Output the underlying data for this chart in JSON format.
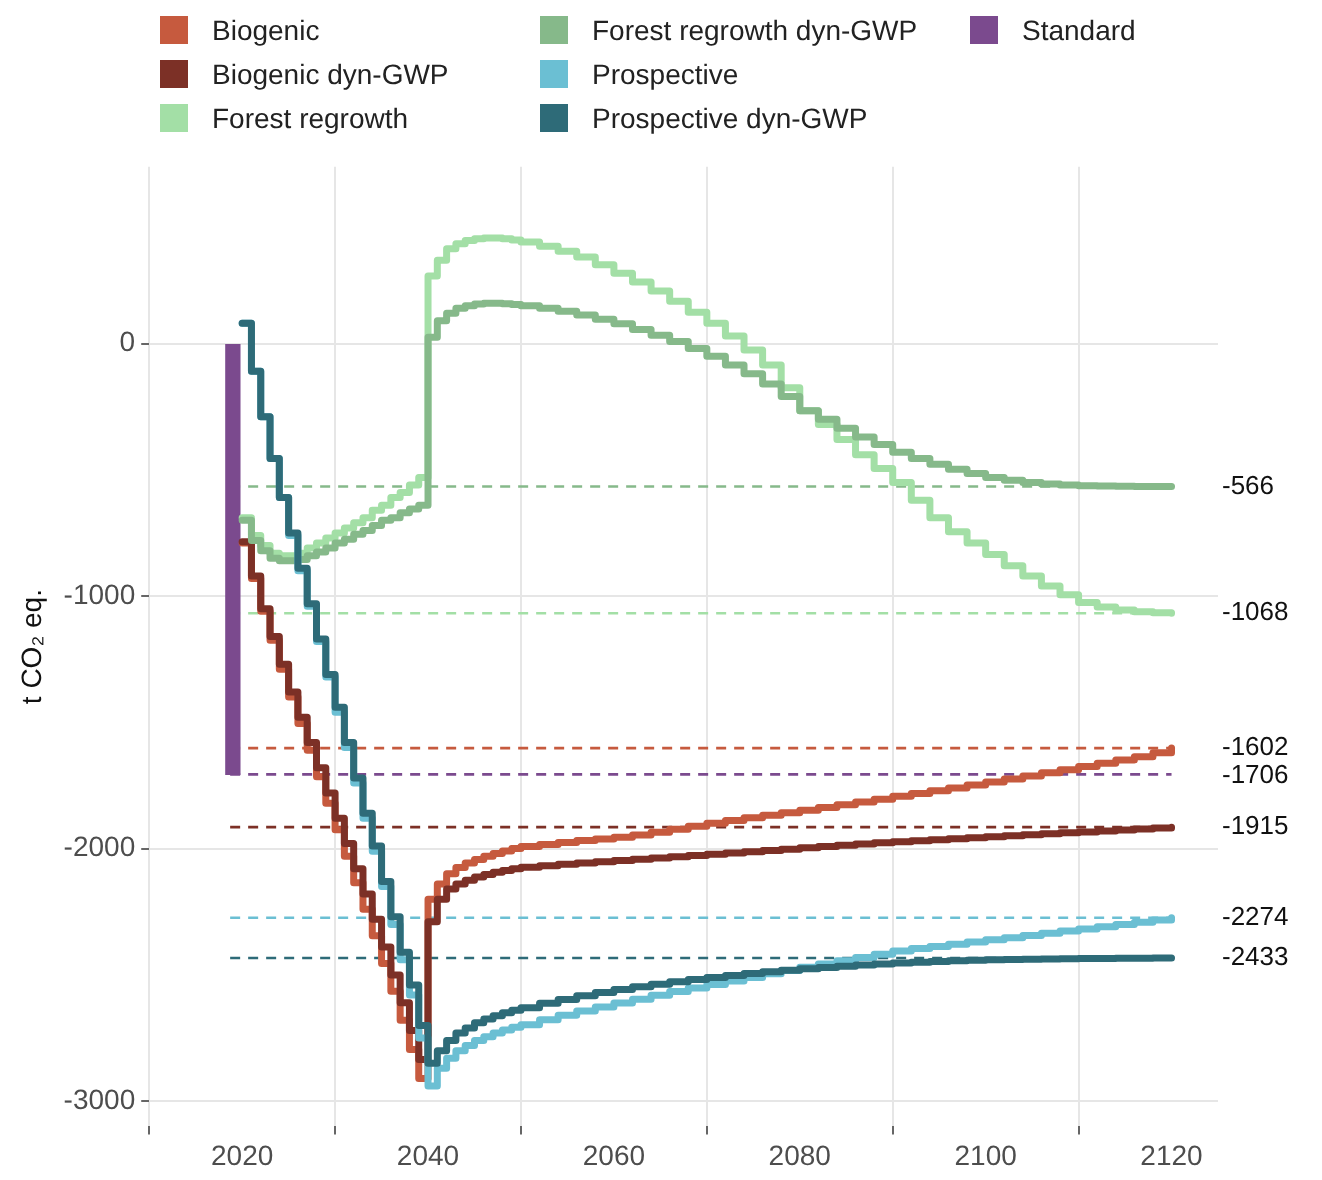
{
  "chart_data": {
    "type": "step",
    "ylabel": "t CO₂ eq.",
    "legend": "top",
    "grid": true,
    "marker": "none",
    "x": [
      2020,
      2021,
      2022,
      2023,
      2024,
      2025,
      2026,
      2027,
      2028,
      2029,
      2030,
      2031,
      2032,
      2033,
      2034,
      2035,
      2036,
      2037,
      2038,
      2039,
      2040,
      2041,
      2042,
      2043,
      2044,
      2045,
      2046,
      2047,
      2048,
      2049,
      2050,
      2052,
      2054,
      2056,
      2058,
      2060,
      2062,
      2064,
      2066,
      2068,
      2070,
      2072,
      2074,
      2076,
      2078,
      2080,
      2082,
      2084,
      2086,
      2088,
      2090,
      2092,
      2094,
      2096,
      2098,
      2100,
      2102,
      2104,
      2106,
      2108,
      2110,
      2112,
      2114,
      2116,
      2118,
      2120
    ],
    "xlim": [
      2010,
      2125
    ],
    "xticks": [
      2020,
      2040,
      2060,
      2080,
      2100,
      2120
    ],
    "ylim": [
      -3100,
      700
    ],
    "yticks": [
      -3000,
      -2000,
      -1000,
      0
    ],
    "series": [
      {
        "name": "Biogenic",
        "color": "#c65a3e",
        "values": [
          -790,
          -930,
          -1060,
          -1175,
          -1290,
          -1400,
          -1505,
          -1610,
          -1715,
          -1820,
          -1925,
          -2030,
          -2135,
          -2240,
          -2345,
          -2455,
          -2565,
          -2680,
          -2795,
          -2910,
          -2200,
          -2140,
          -2100,
          -2075,
          -2057,
          -2043,
          -2030,
          -2019,
          -2009,
          -2000,
          -1992,
          -1984,
          -1976,
          -1968,
          -1962,
          -1955,
          -1946,
          -1935,
          -1923,
          -1911,
          -1900,
          -1889,
          -1878,
          -1868,
          -1858,
          -1848,
          -1837,
          -1826,
          -1815,
          -1804,
          -1793,
          -1782,
          -1771,
          -1760,
          -1748,
          -1736,
          -1724,
          -1712,
          -1700,
          -1688,
          -1675,
          -1662,
          -1649,
          -1636,
          -1620,
          -1602
        ]
      },
      {
        "name": "Biogenic dyn-GWP",
        "color": "#7c3026",
        "values": [
          -785,
          -920,
          -1050,
          -1160,
          -1270,
          -1380,
          -1480,
          -1580,
          -1680,
          -1780,
          -1880,
          -1980,
          -2080,
          -2180,
          -2280,
          -2390,
          -2500,
          -2610,
          -2720,
          -2835,
          -2290,
          -2200,
          -2160,
          -2140,
          -2125,
          -2112,
          -2102,
          -2094,
          -2087,
          -2080,
          -2074,
          -2068,
          -2062,
          -2057,
          -2052,
          -2047,
          -2042,
          -2037,
          -2032,
          -2027,
          -2022,
          -2017,
          -2012,
          -2007,
          -2002,
          -1997,
          -1992,
          -1987,
          -1982,
          -1977,
          -1973,
          -1969,
          -1965,
          -1961,
          -1957,
          -1953,
          -1949,
          -1945,
          -1941,
          -1937,
          -1934,
          -1930,
          -1926,
          -1922,
          -1918,
          -1915
        ]
      },
      {
        "name": "Forest regrowth",
        "color": "#a3dfa6",
        "values": [
          -690,
          -760,
          -800,
          -830,
          -840,
          -840,
          -830,
          -810,
          -790,
          -770,
          -750,
          -730,
          -710,
          -690,
          -660,
          -640,
          -610,
          -590,
          -560,
          -530,
          268,
          330,
          375,
          395,
          408,
          415,
          418,
          418,
          415,
          410,
          402,
          385,
          366,
          343,
          312,
          278,
          244,
          208,
          168,
          124,
          80,
          30,
          -25,
          -85,
          -175,
          -266,
          -320,
          -380,
          -440,
          -495,
          -550,
          -620,
          -690,
          -745,
          -790,
          -835,
          -880,
          -920,
          -960,
          -995,
          -1025,
          -1043,
          -1055,
          -1062,
          -1066,
          -1068
        ]
      },
      {
        "name": "Forest regrowth dyn-GWP",
        "color": "#86b98a",
        "values": [
          -700,
          -780,
          -820,
          -850,
          -860,
          -860,
          -855,
          -840,
          -825,
          -810,
          -790,
          -775,
          -755,
          -740,
          -720,
          -700,
          -690,
          -670,
          -655,
          -640,
          25,
          90,
          120,
          140,
          150,
          157,
          160,
          160,
          158,
          155,
          150,
          140,
          128,
          113,
          96,
          78,
          56,
          33,
          8,
          -20,
          -50,
          -85,
          -120,
          -160,
          -210,
          -266,
          -300,
          -335,
          -370,
          -400,
          -430,
          -455,
          -478,
          -498,
          -515,
          -530,
          -541,
          -550,
          -556,
          -560,
          -563,
          -564,
          -565,
          -566,
          -566,
          -566
        ]
      },
      {
        "name": "Prospective",
        "color": "#6bbfd3",
        "values": [
          80,
          -110,
          -290,
          -455,
          -610,
          -760,
          -900,
          -1040,
          -1180,
          -1320,
          -1460,
          -1600,
          -1740,
          -1880,
          -2010,
          -2150,
          -2300,
          -2440,
          -2580,
          -2750,
          -2940,
          -2870,
          -2830,
          -2800,
          -2780,
          -2760,
          -2745,
          -2730,
          -2718,
          -2707,
          -2697,
          -2678,
          -2660,
          -2643,
          -2627,
          -2611,
          -2596,
          -2581,
          -2566,
          -2552,
          -2538,
          -2524,
          -2510,
          -2496,
          -2483,
          -2470,
          -2457,
          -2444,
          -2431,
          -2418,
          -2405,
          -2396,
          -2388,
          -2379,
          -2370,
          -2361,
          -2353,
          -2344,
          -2335,
          -2326,
          -2318,
          -2309,
          -2300,
          -2292,
          -2283,
          -2274
        ]
      },
      {
        "name": "Prospective dyn-GWP",
        "color": "#2e6b78",
        "values": [
          80,
          -110,
          -290,
          -455,
          -610,
          -750,
          -890,
          -1030,
          -1170,
          -1310,
          -1440,
          -1580,
          -1720,
          -1860,
          -1990,
          -2130,
          -2270,
          -2410,
          -2540,
          -2700,
          -2850,
          -2800,
          -2760,
          -2730,
          -2710,
          -2690,
          -2675,
          -2662,
          -2650,
          -2640,
          -2630,
          -2612,
          -2597,
          -2583,
          -2570,
          -2558,
          -2547,
          -2537,
          -2527,
          -2518,
          -2510,
          -2502,
          -2495,
          -2488,
          -2482,
          -2476,
          -2471,
          -2466,
          -2461,
          -2457,
          -2453,
          -2450,
          -2447,
          -2444,
          -2442,
          -2440,
          -2439,
          -2438,
          -2437,
          -2436,
          -2435,
          -2435,
          -2434,
          -2434,
          -2433,
          -2433
        ]
      },
      {
        "name": "Standard",
        "type": "bar",
        "color": "#7b4a8e",
        "x": [
          2019
        ],
        "values": [
          -1706
        ]
      }
    ],
    "ref_lines": [
      {
        "axis": "y",
        "value": -566,
        "label": "-566",
        "color": "#86b98a",
        "line_style": "dashed"
      },
      {
        "axis": "y",
        "value": -1068,
        "label": "-1068",
        "color": "#a3dfa6",
        "line_style": "dashed"
      },
      {
        "axis": "y",
        "value": -1602,
        "label": "-1602",
        "color": "#c65a3e",
        "line_style": "dashed"
      },
      {
        "axis": "y",
        "value": -1706,
        "label": "-1706",
        "color": "#7b4a8e",
        "line_style": "dashed"
      },
      {
        "axis": "y",
        "value": -1915,
        "label": "-1915",
        "color": "#7c3026",
        "line_style": "dashed"
      },
      {
        "axis": "y",
        "value": -2274,
        "label": "-2274",
        "color": "#6bbfd3",
        "line_style": "dashed"
      },
      {
        "axis": "y",
        "value": -2433,
        "label": "-2433",
        "color": "#2e6b78",
        "line_style": "dashed"
      }
    ]
  }
}
